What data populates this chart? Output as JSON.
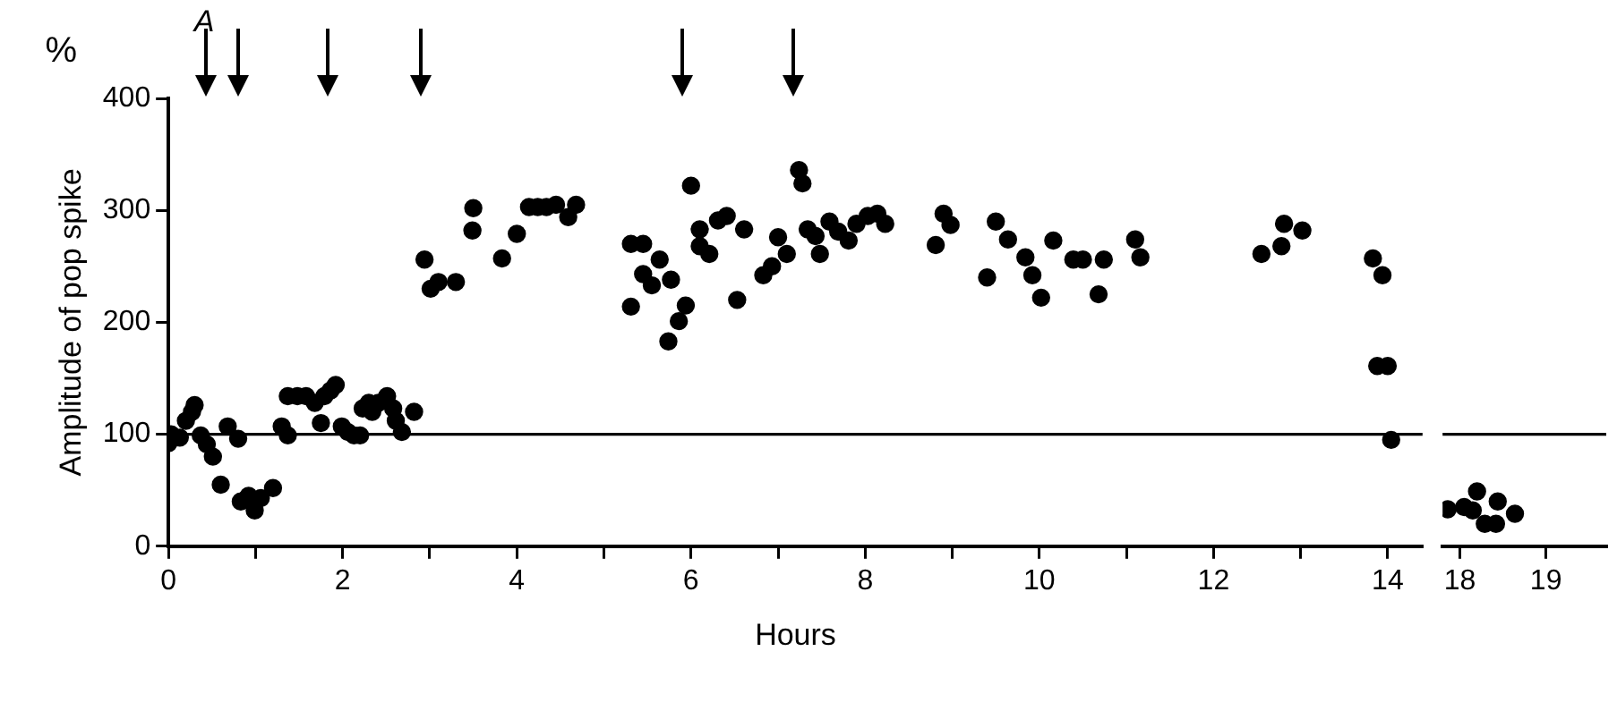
{
  "chart_data": [
    {
      "type": "scatter",
      "xlabel": "Hours",
      "ylabel": "Amplitude of pop spike",
      "annotations": [
        "%",
        "A"
      ],
      "x": [
        0.0,
        0.03,
        0.13,
        0.2,
        0.27,
        0.3,
        0.37,
        0.44,
        0.51,
        0.6,
        0.68,
        0.8,
        0.83,
        0.92,
        0.99,
        1.06,
        1.2,
        1.3,
        1.37,
        1.37,
        1.48,
        1.58,
        1.68,
        1.75,
        1.79,
        1.86,
        1.92,
        1.99,
        2.06,
        2.13,
        2.2,
        2.23,
        2.3,
        2.34,
        2.41,
        2.51,
        2.58,
        2.61,
        2.68,
        2.82,
        2.94,
        3.01,
        3.1,
        3.3,
        3.49,
        3.5,
        3.83,
        4.0,
        4.14,
        4.24,
        4.34,
        4.45,
        4.59,
        4.68,
        5.31,
        5.45,
        5.64,
        5.45,
        5.55,
        5.77,
        5.31,
        5.86,
        5.94,
        5.74,
        6.0,
        6.1,
        6.1,
        6.21,
        6.31,
        6.41,
        6.61,
        6.53,
        6.83,
        6.93,
        7.0,
        7.1,
        7.24,
        7.28,
        7.34,
        7.43,
        7.48,
        7.59,
        7.69,
        7.81,
        7.9,
        8.03,
        8.14,
        8.23,
        8.81,
        8.9,
        8.98,
        9.4,
        9.5,
        9.64,
        9.84,
        9.92,
        10.02,
        10.16,
        10.39,
        10.5,
        10.68,
        10.74,
        11.1,
        11.16,
        12.55,
        12.78,
        12.81,
        13.02,
        13.83,
        13.94,
        13.88,
        14.0,
        14.04
      ],
      "values": [
        92,
        100,
        97,
        112,
        120,
        126,
        99,
        91,
        80,
        55,
        107,
        96,
        40,
        45,
        32,
        43,
        52,
        107,
        99,
        134,
        134,
        134,
        128,
        110,
        134,
        139,
        144,
        107,
        102,
        99,
        99,
        123,
        128,
        120,
        128,
        134,
        123,
        112,
        102,
        120,
        256,
        230,
        236,
        236,
        282,
        302,
        257,
        279,
        303,
        303,
        303,
        305,
        294,
        305,
        270,
        270,
        256,
        243,
        233,
        238,
        214,
        201,
        215,
        183,
        322,
        283,
        268,
        261,
        291,
        295,
        283,
        220,
        242,
        250,
        276,
        261,
        336,
        324,
        283,
        277,
        261,
        290,
        281,
        273,
        288,
        295,
        297,
        288,
        269,
        297,
        287,
        240,
        290,
        274,
        258,
        242,
        222,
        273,
        256,
        256,
        225,
        256,
        274,
        258,
        261,
        268,
        288,
        282,
        257,
        242,
        161,
        161,
        95
      ],
      "color": "#000000",
      "marker": "circle",
      "grid": false,
      "xlim": [
        0,
        14.4
      ],
      "xticks": [
        0,
        {
          "value": 1,
          "label": null
        },
        2,
        {
          "value": 3,
          "label": null
        },
        4,
        {
          "value": 5,
          "label": null
        },
        6,
        {
          "value": 7,
          "label": null
        },
        8,
        {
          "value": 9,
          "label": null
        },
        10,
        {
          "value": 11,
          "label": null
        },
        12,
        {
          "value": 13,
          "label": null
        },
        14
      ],
      "ylim": [
        0,
        400
      ],
      "yticks": [
        0,
        100,
        200,
        300,
        400
      ],
      "ref_lines": [
        {
          "axis": "y",
          "value": 100
        }
      ]
    },
    {
      "type": "scatter",
      "x": [
        17.86,
        18.05,
        18.2,
        18.15,
        18.29,
        18.42,
        18.44,
        18.64
      ],
      "values": [
        33,
        35,
        49,
        32,
        20,
        20,
        40,
        29
      ],
      "color": "#000000",
      "marker": "circle",
      "grid": false,
      "tick_labels": "x",
      "xlim": [
        17.8,
        19.7
      ],
      "xticks": [
        18,
        19
      ],
      "ylim": [
        0,
        400
      ],
      "ref_lines": [
        {
          "axis": "y",
          "value": 100
        }
      ]
    }
  ]
}
